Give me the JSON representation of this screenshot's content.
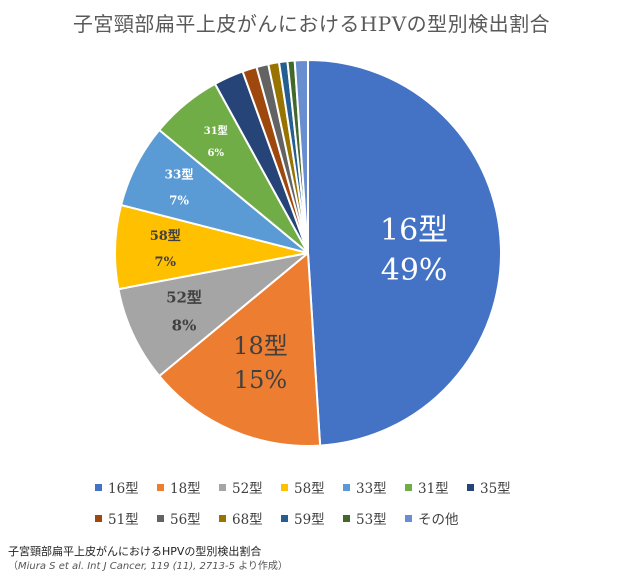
{
  "chart_data": {
    "type": "pie",
    "title": "子宮頸部扁平上皮がんにおけるHPVの型別検出割合",
    "series": [
      {
        "name": "16型",
        "value": 49,
        "label": "49%",
        "color": "#4472C4"
      },
      {
        "name": "18型",
        "value": 15,
        "label": "15%",
        "color": "#ED7D31"
      },
      {
        "name": "52型",
        "value": 8,
        "label": "8%",
        "color": "#A5A5A5"
      },
      {
        "name": "58型",
        "value": 7,
        "label": "7%",
        "color": "#FFC000"
      },
      {
        "name": "33型",
        "value": 7,
        "label": "7%",
        "color": "#5B9BD5"
      },
      {
        "name": "31型",
        "value": 6,
        "label": "6%",
        "color": "#70AD47"
      },
      {
        "name": "35型",
        "value": 2.5,
        "label": "",
        "color": "#264478"
      },
      {
        "name": "51型",
        "value": 1.2,
        "label": "",
        "color": "#9E480E"
      },
      {
        "name": "56型",
        "value": 1.0,
        "label": "",
        "color": "#636363"
      },
      {
        "name": "68型",
        "value": 0.9,
        "label": "",
        "color": "#997300"
      },
      {
        "name": "59型",
        "value": 0.7,
        "label": "",
        "color": "#255E91"
      },
      {
        "name": "53型",
        "value": 0.6,
        "label": "",
        "color": "#43682B"
      },
      {
        "name": "その他",
        "value": 1.1,
        "label": "",
        "color": "#698ED0"
      }
    ],
    "legend_placement": "bottom"
  },
  "caption": {
    "line1": "子宮頸部扁平上皮がんにおけるHPVの型別検出割合",
    "ref_open": "（",
    "ref_italic": "Miura S et al. Int J Cancer, 119 (11), 2713-5",
    "ref_tail": " より作成）"
  }
}
